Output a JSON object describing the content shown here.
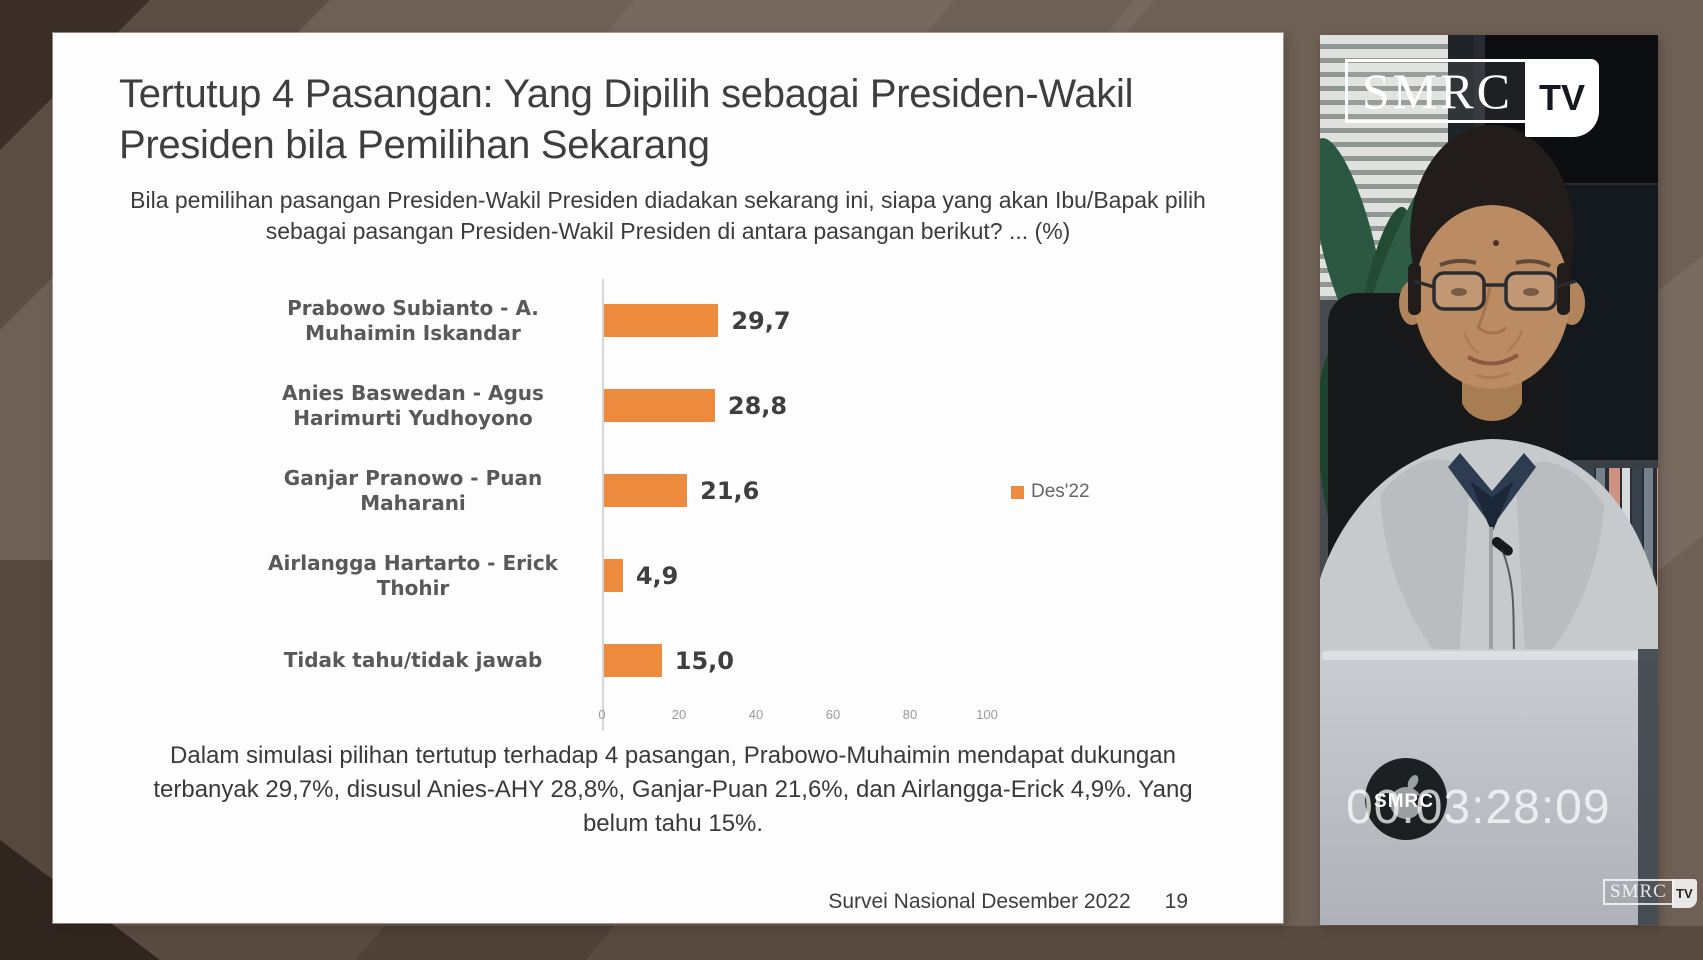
{
  "slide": {
    "title": "Tertutup 4 Pasangan: Yang Dipilih sebagai Presiden-Wakil Presiden bila Pemilihan Sekarang",
    "question": "Bila pemilihan pasangan Presiden-Wakil Presiden diadakan sekarang ini, siapa yang akan Ibu/Bapak pilih sebagai pasangan Presiden-Wakil Presiden di antara pasangan berikut? ... (%)",
    "summary": "Dalam simulasi pilihan tertutup terhadap 4 pasangan, Prabowo-Muhaimin mendapat dukungan terbanyak 29,7%, disusul Anies-AHY 28,8%, Ganjar-Puan 21,6%, dan Airlangga-Erick 4,9%. Yang belum tahu 15%.",
    "footer_source": "Survei Nasional Desember 2022",
    "footer_page": "19"
  },
  "chart_data": {
    "type": "bar",
    "orientation": "horizontal",
    "title": "Tertutup 4 Pasangan: Yang Dipilih sebagai Presiden-Wakil Presiden bila Pemilihan Sekarang",
    "categories": [
      "Prabowo Subianto - A. Muhaimin Iskandar",
      "Anies Baswedan - Agus Harimurti Yudhoyono",
      "Ganjar Pranowo - Puan Maharani",
      "Airlangga Hartarto - Erick Thohir",
      "Tidak tahu/tidak jawab"
    ],
    "values": [
      29.7,
      28.8,
      21.6,
      4.9,
      15.0
    ],
    "value_labels": [
      "29,7",
      "28,8",
      "21,6",
      "4,9",
      "15,0"
    ],
    "x_ticks": [
      "0",
      "20",
      "40",
      "60",
      "80",
      "100"
    ],
    "xlim": [
      0,
      100
    ],
    "grid": false,
    "legend": [
      {
        "label": "Des'22",
        "color": "#EC8A3D"
      }
    ],
    "legend_position": "right",
    "bar_color": "#EC8A3D"
  },
  "video": {
    "logo": {
      "brand": "SMRC",
      "suffix": "TV"
    },
    "timestamp": "00.03:28:09",
    "sticker_label": "SMRC"
  }
}
